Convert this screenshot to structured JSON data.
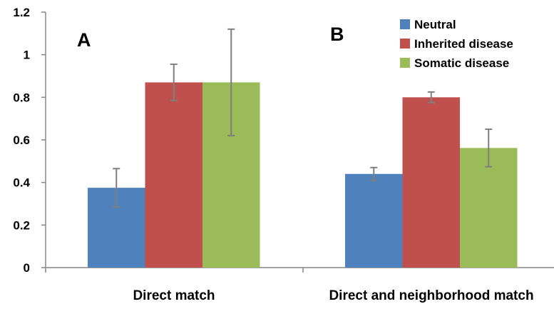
{
  "chart_data": {
    "type": "bar",
    "categories": [
      "Direct match",
      "Direct and neighborhood match"
    ],
    "panel_labels": [
      "A",
      "B"
    ],
    "series": [
      {
        "name": "Neutral",
        "color": "#4f81bd",
        "values": [
          0.375,
          0.44
        ],
        "errors": [
          0.09,
          0.03
        ]
      },
      {
        "name": "Inherited disease",
        "color": "#c0504d",
        "values": [
          0.87,
          0.8
        ],
        "errors": [
          0.085,
          0.025
        ]
      },
      {
        "name": "Somatic disease",
        "color": "#9bbb59",
        "values": [
          0.87,
          0.562
        ],
        "errors": [
          0.25,
          0.088
        ]
      }
    ],
    "ylim": [
      0,
      1.2
    ],
    "yticks": [
      "0",
      "0.2",
      "0.4",
      "0.6",
      "0.8",
      "1",
      "1.2"
    ],
    "ytick_values": [
      0,
      0.2,
      0.4,
      0.6,
      0.8,
      1.0,
      1.2
    ],
    "xlabel": "",
    "ylabel": "",
    "legend_position": "top-right",
    "grid": false
  }
}
